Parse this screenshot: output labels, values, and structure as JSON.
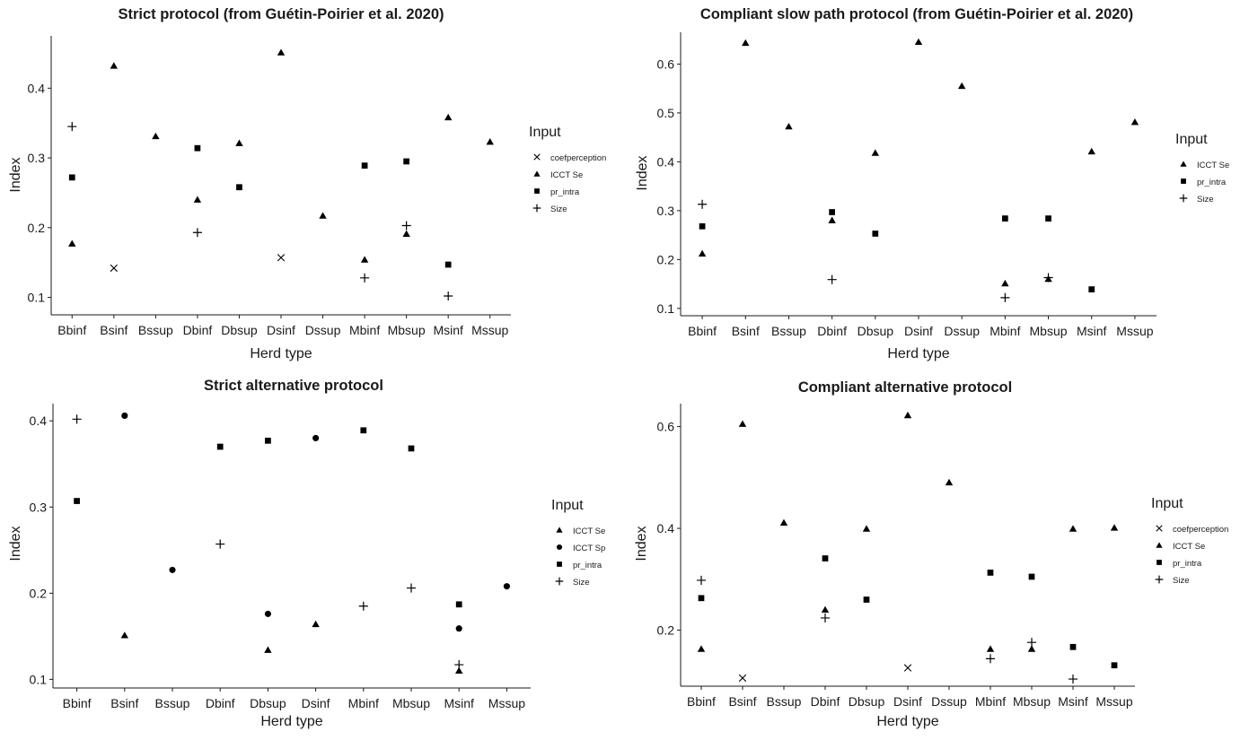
{
  "chart_data": [
    {
      "type": "scatter",
      "title": "Strict protocol (from Guétin-Poirier et al. 2020)",
      "xlabel": "Herd type",
      "ylabel": "Index",
      "categories": [
        "Bbinf",
        "Bsinf",
        "Bssup",
        "Dbinf",
        "Dbsup",
        "Dsinf",
        "Dssup",
        "Mbinf",
        "Mbsup",
        "Msinf",
        "Mssup"
      ],
      "ylim": [
        0.075,
        0.475
      ],
      "yticks": [
        "0.1",
        "0.2",
        "0.3",
        "0.4"
      ],
      "grid": false,
      "legend_title": "Input",
      "legend_position": "right",
      "series": [
        {
          "name": "coefperception",
          "shape": "cross",
          "points": [
            [
              "Bsinf",
              0.142
            ],
            [
              "Dsinf",
              0.157
            ]
          ]
        },
        {
          "name": "ICCT Se",
          "shape": "triangle",
          "points": [
            [
              "Bbinf",
              0.177
            ],
            [
              "Bsinf",
              0.432
            ],
            [
              "Bssup",
              0.331
            ],
            [
              "Dbinf",
              0.24
            ],
            [
              "Dbsup",
              0.321
            ],
            [
              "Dsinf",
              0.451
            ],
            [
              "Dssup",
              0.217
            ],
            [
              "Mbinf",
              0.154
            ],
            [
              "Mbsup",
              0.191
            ],
            [
              "Msinf",
              0.358
            ],
            [
              "Mssup",
              0.323
            ]
          ]
        },
        {
          "name": "pr_intra",
          "shape": "square",
          "points": [
            [
              "Bbinf",
              0.272
            ],
            [
              "Dbinf",
              0.314
            ],
            [
              "Dbsup",
              0.258
            ],
            [
              "Mbinf",
              0.289
            ],
            [
              "Mbsup",
              0.295
            ],
            [
              "Msinf",
              0.147
            ]
          ]
        },
        {
          "name": "Size",
          "shape": "plus",
          "points": [
            [
              "Bbinf",
              0.345
            ],
            [
              "Dbinf",
              0.193
            ],
            [
              "Mbinf",
              0.128
            ],
            [
              "Mbsup",
              0.203
            ],
            [
              "Msinf",
              0.102
            ]
          ]
        }
      ]
    },
    {
      "type": "scatter",
      "title": "Compliant slow path protocol (from Guétin-Poirier et al. 2020)",
      "xlabel": "Herd  type",
      "ylabel": "Index",
      "categories": [
        "Bbinf",
        "Bsinf",
        "Bssup",
        "Dbinf",
        "Dbsup",
        "Dsinf",
        "Dssup",
        "Mbinf",
        "Mbsup",
        "Msinf",
        "Mssup"
      ],
      "ylim": [
        0.085,
        0.665
      ],
      "yticks": [
        "0.1",
        "0.2",
        "0.3",
        "0.4",
        "0.5",
        "0.6"
      ],
      "grid": false,
      "legend_title": "Input",
      "legend_position": "right",
      "series": [
        {
          "name": "ICCT Se",
          "shape": "triangle",
          "points": [
            [
              "Bbinf",
              0.212
            ],
            [
              "Bsinf",
              0.643
            ],
            [
              "Bssup",
              0.472
            ],
            [
              "Dbinf",
              0.28
            ],
            [
              "Dbsup",
              0.418
            ],
            [
              "Dsinf",
              0.645
            ],
            [
              "Dssup",
              0.555
            ],
            [
              "Mbinf",
              0.151
            ],
            [
              "Mbsup",
              0.16
            ],
            [
              "Msinf",
              0.421
            ],
            [
              "Mssup",
              0.481
            ]
          ]
        },
        {
          "name": "pr_intra",
          "shape": "square",
          "points": [
            [
              "Bbinf",
              0.268
            ],
            [
              "Dbinf",
              0.297
            ],
            [
              "Dbsup",
              0.253
            ],
            [
              "Mbinf",
              0.284
            ],
            [
              "Mbsup",
              0.284
            ],
            [
              "Msinf",
              0.139
            ]
          ]
        },
        {
          "name": "Size",
          "shape": "plus",
          "points": [
            [
              "Bbinf",
              0.313
            ],
            [
              "Dbinf",
              0.159
            ],
            [
              "Mbinf",
              0.122
            ],
            [
              "Mbsup",
              0.163
            ]
          ]
        }
      ]
    },
    {
      "type": "scatter",
      "title": "Strict alternative protocol",
      "xlabel": "Herd type",
      "ylabel": "Index",
      "categories": [
        "Bbinf",
        "Bsinf",
        "Bssup",
        "Dbinf",
        "Dbsup",
        "Dsinf",
        "Mbinf",
        "Mbsup",
        "Msinf",
        "Mssup"
      ],
      "ylim": [
        0.09,
        0.42
      ],
      "yticks": [
        "0.1",
        "0.2",
        "0.3",
        "0.4"
      ],
      "grid": false,
      "legend_title": "Input",
      "legend_position": "right",
      "series": [
        {
          "name": "ICCT Se",
          "shape": "triangle",
          "points": [
            [
              "Bsinf",
              0.151
            ],
            [
              "Dbsup",
              0.134
            ],
            [
              "Dsinf",
              0.164
            ],
            [
              "Msinf",
              0.11
            ]
          ]
        },
        {
          "name": "ICCT Sp",
          "shape": "circle",
          "points": [
            [
              "Bsinf",
              0.406
            ],
            [
              "Bssup",
              0.227
            ],
            [
              "Dbsup",
              0.176
            ],
            [
              "Dsinf",
              0.38
            ],
            [
              "Msinf",
              0.159
            ],
            [
              "Mssup",
              0.208
            ]
          ]
        },
        {
          "name": "pr_intra",
          "shape": "square",
          "points": [
            [
              "Bbinf",
              0.307
            ],
            [
              "Dbinf",
              0.37
            ],
            [
              "Dbsup",
              0.377
            ],
            [
              "Mbinf",
              0.389
            ],
            [
              "Mbsup",
              0.368
            ],
            [
              "Msinf",
              0.187
            ]
          ]
        },
        {
          "name": "Size",
          "shape": "plus",
          "points": [
            [
              "Bbinf",
              0.402
            ],
            [
              "Dbinf",
              0.257
            ],
            [
              "Mbinf",
              0.185
            ],
            [
              "Mbsup",
              0.206
            ],
            [
              "Msinf",
              0.117
            ]
          ]
        }
      ]
    },
    {
      "type": "scatter",
      "title": "Compliant alternative protocol",
      "xlabel": "Herd type",
      "ylabel": "Index",
      "categories": [
        "Bbinf",
        "Bsinf",
        "Bssup",
        "Dbinf",
        "Dbsup",
        "Dsinf",
        "Dssup",
        "Mbinf",
        "Mbsup",
        "Msinf",
        "Mssup"
      ],
      "ylim": [
        0.09,
        0.645
      ],
      "yticks": [
        "0.2",
        "0.4",
        "0.6"
      ],
      "grid": false,
      "legend_title": "Input",
      "legend_position": "right",
      "series": [
        {
          "name": "coefperception",
          "shape": "cross",
          "points": [
            [
              "Bsinf",
              0.106
            ],
            [
              "Dsinf",
              0.126
            ]
          ]
        },
        {
          "name": "ICCT Se",
          "shape": "triangle",
          "points": [
            [
              "Bbinf",
              0.163
            ],
            [
              "Bsinf",
              0.605
            ],
            [
              "Bssup",
              0.411
            ],
            [
              "Dbinf",
              0.24
            ],
            [
              "Dbsup",
              0.399
            ],
            [
              "Dsinf",
              0.622
            ],
            [
              "Dssup",
              0.49
            ],
            [
              "Mbinf",
              0.163
            ],
            [
              "Mbsup",
              0.163
            ],
            [
              "Msinf",
              0.399
            ],
            [
              "Mssup",
              0.401
            ]
          ]
        },
        {
          "name": "pr_intra",
          "shape": "square",
          "points": [
            [
              "Bbinf",
              0.263
            ],
            [
              "Dbinf",
              0.341
            ],
            [
              "Dbsup",
              0.26
            ],
            [
              "Mbinf",
              0.313
            ],
            [
              "Mbsup",
              0.305
            ],
            [
              "Msinf",
              0.167
            ],
            [
              "Mssup",
              0.131
            ]
          ]
        },
        {
          "name": "Size",
          "shape": "plus",
          "points": [
            [
              "Bbinf",
              0.298
            ],
            [
              "Dbinf",
              0.224
            ],
            [
              "Mbinf",
              0.144
            ],
            [
              "Mbsup",
              0.176
            ],
            [
              "Msinf",
              0.104
            ]
          ]
        }
      ]
    }
  ]
}
